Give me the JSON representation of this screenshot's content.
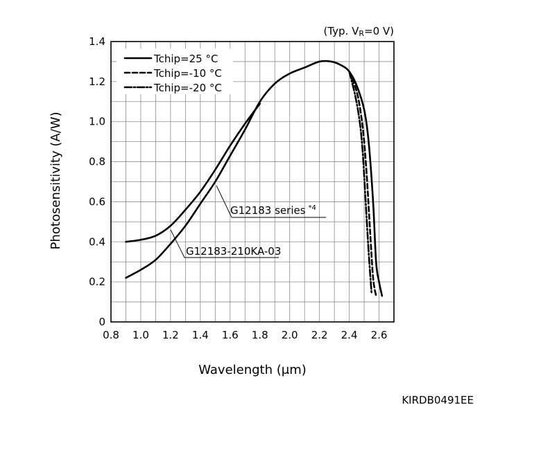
{
  "chart_data": {
    "type": "line",
    "condition": "(Typ. V",
    "condition_sub": "R",
    "condition_tail": "=0 V)",
    "xlabel": "Wavelength (μm)",
    "ylabel": "Photosensitivity (A/W)",
    "xlim": [
      0.8,
      2.7
    ],
    "ylim": [
      0,
      1.4
    ],
    "x_ticks": [
      "0.8",
      "1.0",
      "1.2",
      "1.4",
      "1.6",
      "1.8",
      "2.0",
      "2.2",
      "2.4",
      "2.6"
    ],
    "y_ticks": [
      "0",
      "0.2",
      "0.4",
      "0.6",
      "0.8",
      "1.0",
      "1.2",
      "1.4"
    ],
    "x_tick_values": [
      0.8,
      1.0,
      1.2,
      1.4,
      1.6,
      1.8,
      2.0,
      2.2,
      2.4,
      2.6
    ],
    "y_tick_values": [
      0,
      0.2,
      0.4,
      0.6,
      0.8,
      1.0,
      1.2,
      1.4
    ],
    "grid": true,
    "legend_position": "top-left",
    "legend": [
      {
        "label": "Tchip=25 °C",
        "dash": "solid"
      },
      {
        "label": "Tchip=-10 °C",
        "dash": "dashed"
      },
      {
        "label": "Tchip=-20 °C",
        "dash": "dashdot"
      }
    ],
    "annotations": {
      "series_label": "G12183 series",
      "series_note": "*4",
      "model_label": "G12183-210KA-03"
    },
    "series": [
      {
        "dash": "solid",
        "x": [
          0.9,
          1.0,
          1.1,
          1.2,
          1.3,
          1.4,
          1.5,
          1.6,
          1.7,
          1.8
        ],
        "y": [
          0.4,
          0.41,
          0.43,
          0.48,
          0.56,
          0.65,
          0.76,
          0.88,
          0.99,
          1.09
        ]
      },
      {
        "dash": "solid",
        "x": [
          0.9,
          1.0,
          1.1,
          1.2,
          1.3,
          1.4,
          1.5,
          1.6,
          1.7,
          1.8,
          1.9,
          2.0,
          2.1,
          2.2,
          2.28,
          2.35,
          2.4,
          2.45,
          2.5,
          2.53,
          2.56,
          2.58,
          2.6,
          2.62
        ],
        "y": [
          0.22,
          0.26,
          0.31,
          0.39,
          0.48,
          0.59,
          0.7,
          0.83,
          0.96,
          1.1,
          1.19,
          1.24,
          1.27,
          1.3,
          1.3,
          1.28,
          1.25,
          1.18,
          1.06,
          0.9,
          0.6,
          0.3,
          0.2,
          0.13
        ]
      },
      {
        "dash": "dashed",
        "x": [
          2.4,
          2.45,
          2.48,
          2.5,
          2.52,
          2.54,
          2.56,
          2.58
        ],
        "y": [
          1.25,
          1.15,
          1.03,
          0.9,
          0.7,
          0.45,
          0.22,
          0.13
        ]
      },
      {
        "dash": "dashdot",
        "x": [
          2.4,
          2.44,
          2.47,
          2.49,
          2.51,
          2.53,
          2.55
        ],
        "y": [
          1.25,
          1.13,
          1.0,
          0.85,
          0.6,
          0.35,
          0.14
        ]
      }
    ]
  },
  "footer": {
    "doc_code": "KIRDB0491EE"
  }
}
